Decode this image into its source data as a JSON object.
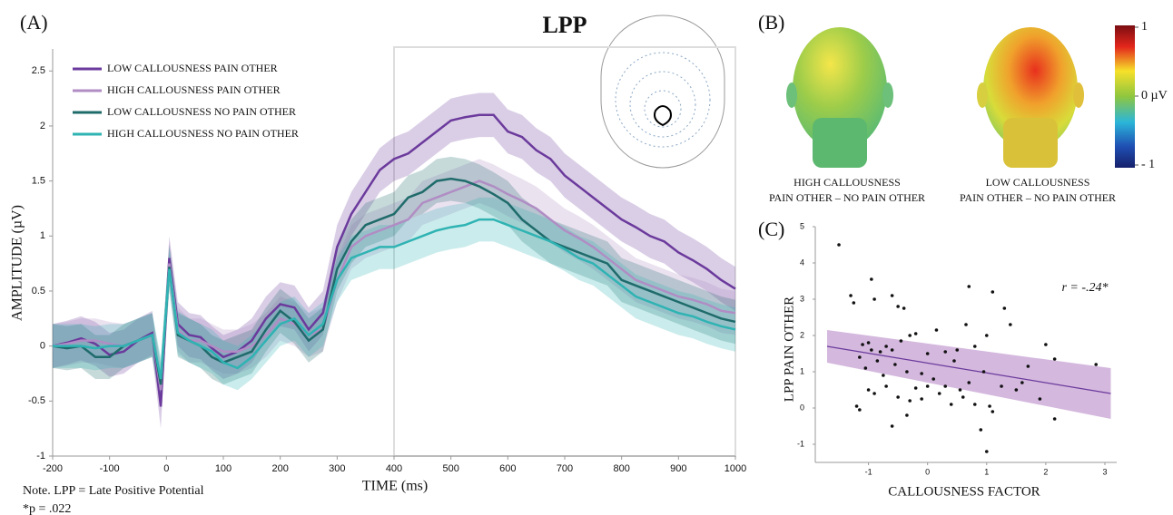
{
  "chart_data": [
    {
      "type": "line",
      "panel_label": "(A)",
      "title": "LPP",
      "xlabel": "TIME (ms)",
      "ylabel": "AMPLITUDE (µV)",
      "notes": [
        "Note. LPP = Late Positive Potential",
        "*p = .022"
      ],
      "x": [
        -200,
        -175,
        -150,
        -125,
        -100,
        -75,
        -50,
        -25,
        -10,
        5,
        20,
        40,
        60,
        80,
        100,
        125,
        150,
        175,
        200,
        225,
        250,
        275,
        300,
        325,
        350,
        375,
        400,
        425,
        450,
        475,
        500,
        525,
        550,
        575,
        600,
        625,
        650,
        675,
        700,
        725,
        750,
        775,
        800,
        825,
        850,
        875,
        900,
        925,
        950,
        975,
        1000
      ],
      "series": [
        {
          "name": "LOW CALLOUSNESS PAIN OTHER",
          "color": "#6b3a9c",
          "ci": 0.2,
          "values": [
            0,
            0.03,
            0.07,
            0.02,
            -0.08,
            -0.05,
            0.05,
            0.12,
            -0.55,
            0.8,
            0.2,
            0.1,
            0.08,
            -0.02,
            -0.1,
            -0.05,
            0.05,
            0.25,
            0.38,
            0.35,
            0.15,
            0.3,
            0.9,
            1.2,
            1.4,
            1.6,
            1.7,
            1.75,
            1.85,
            1.95,
            2.05,
            2.08,
            2.1,
            2.1,
            1.95,
            1.9,
            1.78,
            1.7,
            1.55,
            1.45,
            1.35,
            1.25,
            1.15,
            1.08,
            1.0,
            0.95,
            0.85,
            0.78,
            0.7,
            0.6,
            0.52
          ]
        },
        {
          "name": "HIGH CALLOUSNESS PAIN OTHER",
          "color": "#b08dc4",
          "ci": 0.2,
          "values": [
            0,
            0.02,
            0.05,
            0.05,
            0.02,
            0,
            0.05,
            0.1,
            -0.4,
            0.75,
            0.15,
            0.05,
            0.05,
            0,
            -0.05,
            -0.05,
            0,
            0.1,
            0.25,
            0.2,
            0.1,
            0.15,
            0.6,
            0.9,
            1.0,
            1.05,
            1.1,
            1.15,
            1.3,
            1.35,
            1.4,
            1.45,
            1.5,
            1.45,
            1.38,
            1.32,
            1.25,
            1.15,
            1.05,
            0.98,
            0.9,
            0.8,
            0.7,
            0.6,
            0.55,
            0.5,
            0.45,
            0.42,
            0.38,
            0.32,
            0.3
          ]
        },
        {
          "name": "LOW CALLOUSNESS NO PAIN OTHER",
          "color": "#1f6b6b",
          "ci": 0.2,
          "values": [
            0,
            -0.02,
            0,
            -0.1,
            -0.1,
            0,
            0.05,
            0.1,
            -0.35,
            0.72,
            0.1,
            0.05,
            0,
            -0.1,
            -0.15,
            -0.1,
            -0.05,
            0.15,
            0.32,
            0.22,
            0.05,
            0.15,
            0.7,
            0.95,
            1.1,
            1.15,
            1.2,
            1.35,
            1.4,
            1.5,
            1.52,
            1.5,
            1.45,
            1.38,
            1.3,
            1.15,
            1.05,
            0.95,
            0.9,
            0.85,
            0.8,
            0.75,
            0.6,
            0.55,
            0.5,
            0.45,
            0.4,
            0.35,
            0.3,
            0.25,
            0.22
          ]
        },
        {
          "name": "HIGH CALLOUSNESS NO PAIN OTHER",
          "color": "#2fb3b3",
          "ci": 0.2,
          "values": [
            0,
            0,
            0,
            -0.02,
            0,
            0,
            0.05,
            0.1,
            -0.3,
            0.7,
            0.12,
            0.05,
            0,
            -0.05,
            -0.15,
            -0.2,
            -0.1,
            0.05,
            0.2,
            0.25,
            0.1,
            0.2,
            0.6,
            0.8,
            0.85,
            0.9,
            0.9,
            0.95,
            1.0,
            1.05,
            1.08,
            1.1,
            1.15,
            1.15,
            1.1,
            1.05,
            1.0,
            0.95,
            0.88,
            0.8,
            0.75,
            0.65,
            0.55,
            0.45,
            0.4,
            0.35,
            0.3,
            0.27,
            0.22,
            0.18,
            0.15
          ]
        }
      ],
      "highlight_x": [
        400,
        1000
      ],
      "xlim": [
        -200,
        1000
      ],
      "xticks": [
        -200,
        -100,
        0,
        100,
        200,
        300,
        400,
        500,
        600,
        700,
        800,
        900,
        1000
      ],
      "ylim": [
        -1,
        2.7
      ],
      "yticks": [
        -1,
        -0.5,
        0,
        0.5,
        1,
        1.5,
        2,
        2.5
      ]
    },
    {
      "type": "topomap",
      "panel_label": "(B)",
      "captions": [
        [
          "HIGH CALLOUSNESS",
          "PAIN OTHER – NO PAIN OTHER"
        ],
        [
          "LOW CALLOUSNESS",
          "PAIN OTHER – NO PAIN OTHER"
        ]
      ],
      "colorbar_lim": [
        -1,
        1
      ],
      "colorbar_ticks": [
        1,
        {
          "value": 0,
          "label": "0 µV"
        },
        {
          "value": -1,
          "label": "- 1"
        }
      ]
    },
    {
      "type": "scatter",
      "panel_label": "(C)",
      "xlabel": "CALLOUSNESS FACTOR",
      "ylabel": "LPP PAIN OTHER",
      "annotation": "r = -.24*",
      "color": "#111111",
      "fit_color": "#6b3a9c",
      "band_color": "#c9a6d6",
      "x": [
        -1.5,
        -1.3,
        -1.25,
        -0.95,
        -0.9,
        -0.6,
        -0.5,
        -0.4,
        0.15,
        0.7,
        1.1,
        1.3,
        1.4,
        2.0,
        2.15,
        2.85,
        1.7,
        1.0,
        0.8,
        -1.1,
        -1.0,
        -0.95,
        -0.8,
        -0.7,
        -0.6,
        -0.45,
        -0.3,
        -0.2,
        0.0,
        0.3,
        0.5,
        -1.15,
        -0.85,
        -0.55,
        -0.35,
        -0.1,
        0.1,
        0.3,
        0.55,
        0.7,
        -1.0,
        -0.9,
        -0.7,
        -0.5,
        -0.3,
        -0.1,
        0.2,
        0.4,
        0.6,
        -1.05,
        -0.75,
        -1.2,
        -1.15,
        -0.6,
        -0.35,
        0.8,
        1.05,
        1.1,
        0.9,
        1.0,
        1.25,
        1.5,
        2.15,
        1.9,
        0.95,
        1.6,
        0.0,
        -0.2,
        0.45,
        0.65
      ],
      "y": [
        4.5,
        3.1,
        2.9,
        3.55,
        3.0,
        3.1,
        2.8,
        2.75,
        2.15,
        3.35,
        3.2,
        2.75,
        2.3,
        1.75,
        1.35,
        1.2,
        1.15,
        2.0,
        1.7,
        1.75,
        1.8,
        1.6,
        1.55,
        1.7,
        1.6,
        1.85,
        2.0,
        2.05,
        1.5,
        1.55,
        1.6,
        1.4,
        1.3,
        1.2,
        1.0,
        0.95,
        0.8,
        0.6,
        0.5,
        0.7,
        0.5,
        0.4,
        0.6,
        0.3,
        0.2,
        0.25,
        0.4,
        0.1,
        0.3,
        1.1,
        0.9,
        0.05,
        -0.05,
        -0.5,
        -0.2,
        0.1,
        0.05,
        -0.1,
        -0.6,
        -1.2,
        0.6,
        0.5,
        -0.3,
        0.25,
        1.0,
        0.7,
        0.6,
        0.55,
        1.3,
        2.3
      ],
      "fit": {
        "x": [
          -1.7,
          3.1
        ],
        "y": [
          1.7,
          0.4
        ],
        "ci": [
          0.45,
          0.7
        ]
      },
      "xlim": [
        -1.9,
        3.2
      ],
      "xticks": [
        -1,
        0,
        1,
        2,
        3
      ],
      "ylim": [
        -1.5,
        5
      ],
      "yticks": [
        -1,
        0,
        1,
        2,
        3,
        4,
        5
      ]
    }
  ]
}
